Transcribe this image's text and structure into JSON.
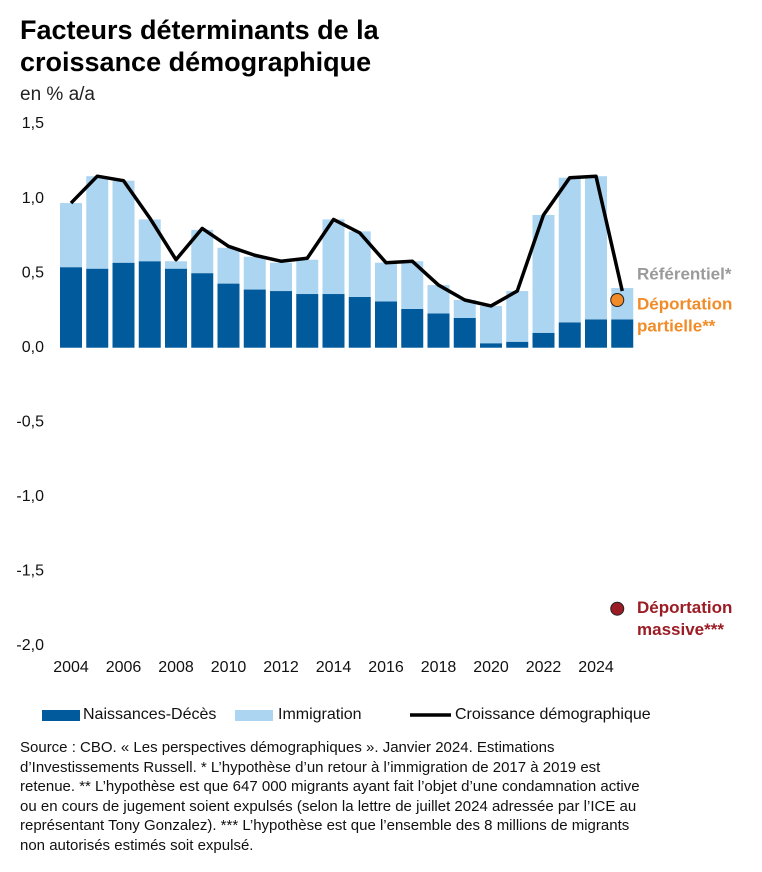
{
  "chart_data": {
    "type": "bar",
    "stacked": true,
    "title": "Facteurs déterminants de la croissance démographique",
    "subtitle": "en % a/a",
    "categories": [
      "2004",
      null,
      "2006",
      null,
      "2008",
      null,
      "2010",
      null,
      "2012",
      null,
      "2014",
      null,
      "2016",
      null,
      "2018",
      null,
      "2020",
      null,
      "2022",
      null,
      "2024",
      null
    ],
    "series": [
      {
        "name": "Naissances-Décès",
        "type": "bar",
        "color": "#005a9c",
        "values": [
          0.54,
          0.53,
          0.57,
          0.58,
          0.53,
          0.5,
          0.43,
          0.39,
          0.38,
          0.36,
          0.36,
          0.34,
          0.31,
          0.26,
          0.23,
          0.2,
          0.03,
          0.04,
          0.1,
          0.17,
          0.19,
          0.19
        ]
      },
      {
        "name": "Immigration",
        "type": "bar",
        "color": "#acd5f1",
        "values": [
          0.43,
          0.62,
          0.55,
          0.28,
          0.05,
          0.29,
          0.24,
          0.22,
          0.19,
          0.23,
          0.5,
          0.44,
          0.26,
          0.32,
          0.19,
          0.12,
          0.25,
          0.34,
          0.79,
          0.97,
          0.96,
          0.21
        ]
      },
      {
        "name": "Croissance démographique",
        "type": "line",
        "color": "#000000",
        "values": [
          0.97,
          1.15,
          1.12,
          0.87,
          0.59,
          0.8,
          0.68,
          0.62,
          0.58,
          0.6,
          0.86,
          0.77,
          0.57,
          0.58,
          0.42,
          0.32,
          0.28,
          0.38,
          0.89,
          1.14,
          1.15,
          0.38
        ]
      }
    ],
    "ylim": [
      -2.0,
      1.5
    ],
    "yticks": [
      {
        "value": -2.0,
        "label": "-2,0"
      },
      {
        "value": -1.5,
        "label": "-1,5"
      },
      {
        "value": -1.0,
        "label": "-1,0"
      },
      {
        "value": -0.5,
        "label": "-0,5"
      },
      {
        "value": 0.0,
        "label": "0,0"
      },
      {
        "value": 0.5,
        "label": "0,5"
      },
      {
        "value": 1.0,
        "label": "1,0"
      },
      {
        "value": 1.5,
        "label": "1,5"
      }
    ],
    "grid": false,
    "legend": "bottom",
    "annotations": [
      {
        "label_lines": [
          "Référentiel*"
        ],
        "value": 0.38,
        "color": "#9a9a9a",
        "marker": false
      },
      {
        "label_lines": [
          "Déportation",
          "partielle**"
        ],
        "value": 0.32,
        "color": "#f28c28",
        "marker": true
      },
      {
        "label_lines": [
          "Déportation",
          "massive***"
        ],
        "value": -1.75,
        "color": "#9b1c24",
        "marker": true
      }
    ]
  },
  "source": "Source : CBO. « Les perspectives démographiques ». Janvier 2024. Estimations d’Investissements Russell. * L’hypothèse d’un retour à l’immigration de 2017 à 2019 est retenue. ** L’hypothèse est que 647 000 migrants ayant fait l’objet d’une condamnation active ou en cours de jugement soient expulsés (selon la lettre de juillet 2024 adressée par l’ICE au représentant Tony Gonzalez). *** L’hypothèse est que l’ensemble des 8 millions de migrants non autorisés estimés soit expulsé."
}
